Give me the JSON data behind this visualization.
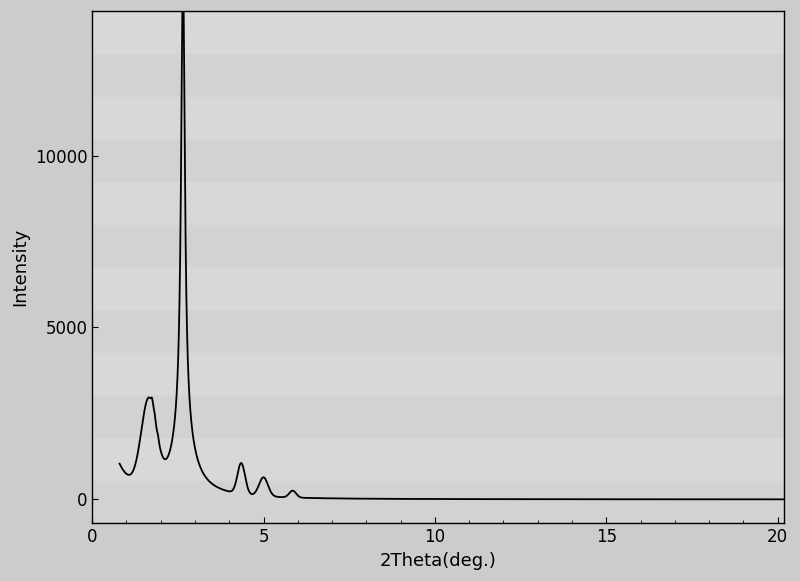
{
  "xlabel": "2Theta(deg.)",
  "ylabel": "Intensity",
  "xlim": [
    0.8,
    20.2
  ],
  "ylim": [
    -700,
    14200
  ],
  "xticks": [
    0,
    5,
    10,
    15,
    20
  ],
  "yticks": [
    0,
    5000,
    10000
  ],
  "background_color": "#cccccc",
  "plot_bg_color": "#d6d6d6",
  "line_color": "#000000",
  "line_width": 1.3,
  "fig_width": 8.0,
  "fig_height": 5.81,
  "dpi": 100,
  "xlabel_fontsize": 13,
  "ylabel_fontsize": 13,
  "tick_fontsize": 12,
  "stripe_colors": [
    "#d0d0d0",
    "#dadada"
  ],
  "stripe_count": 6
}
